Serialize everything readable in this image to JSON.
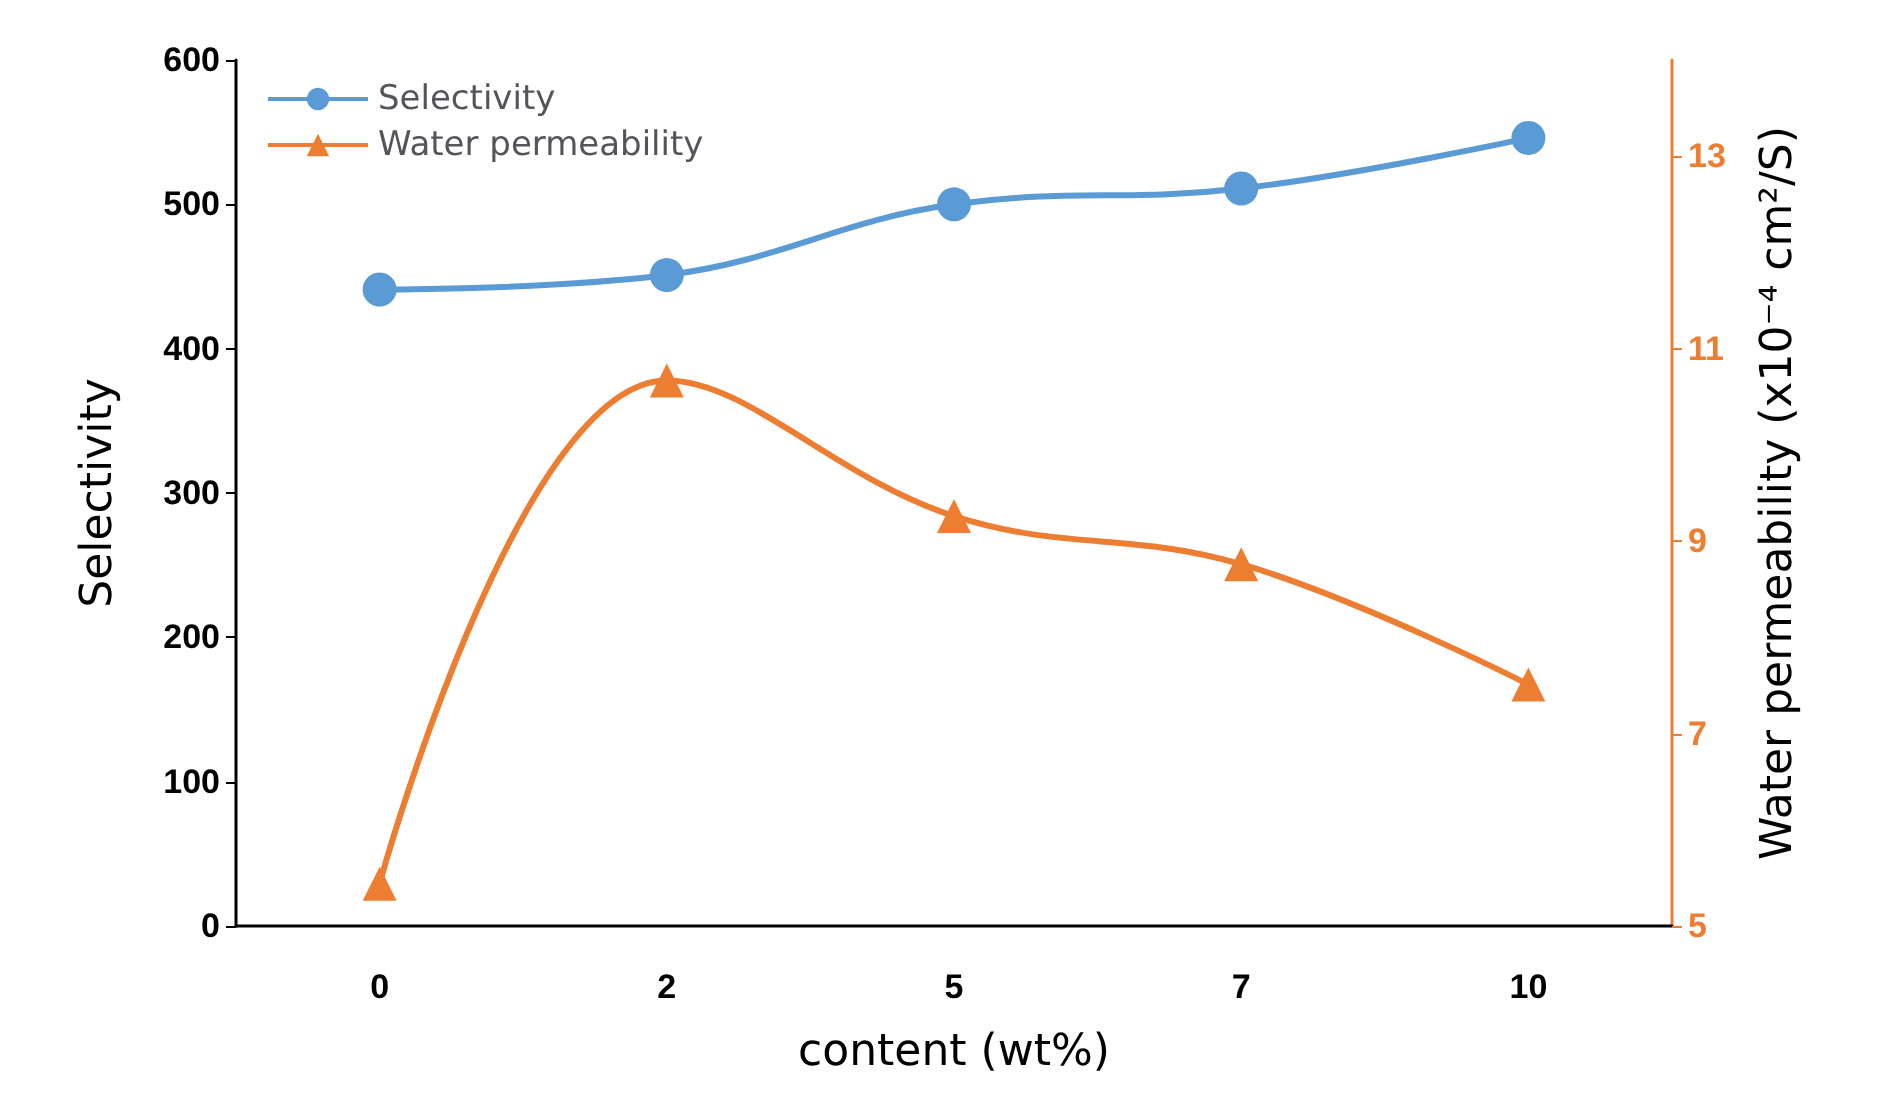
{
  "chart_data": {
    "type": "line",
    "xlabel": "content (wt%)",
    "ylabel": "Selectivity",
    "y2label": "Water permeability (x10⁻⁴ cm²/S)",
    "categories": [
      "0",
      "2",
      "5",
      "7",
      "10"
    ],
    "series": [
      {
        "name": "Selectivity",
        "color": "#5b9bd5",
        "values": [
          441,
          451,
          500,
          511,
          546
        ],
        "marker": "circle"
      },
      {
        "name": "Water permeability",
        "color": "#ed7d31",
        "values": [
          5.44,
          10.67,
          9.26,
          8.76,
          7.51
        ],
        "marker": "triangle",
        "axis": "y2"
      }
    ],
    "ylim": [
      0,
      600
    ],
    "yticks": [
      0,
      100,
      200,
      300,
      400,
      500,
      600
    ],
    "y2lim": [
      5,
      14
    ],
    "y2ticks": [
      5,
      7,
      9,
      11,
      13
    ],
    "grid": false,
    "legend": "top left",
    "line_style": "solid"
  }
}
